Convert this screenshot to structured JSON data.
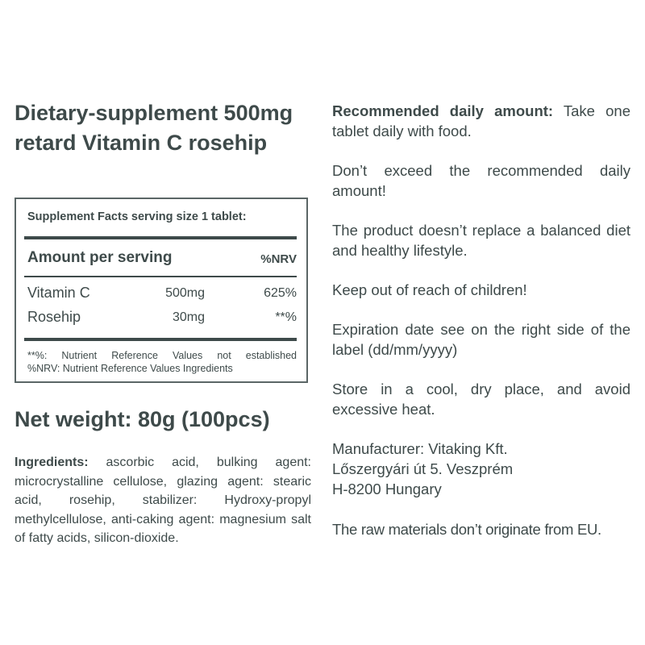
{
  "title": "Dietary-supplement 500mg retard Vitamin C rosehip",
  "facts": {
    "header": "Supplement Facts serving size 1 tablet:",
    "amount_per_serving": "Amount per serving",
    "nrv_header": "%NRV",
    "rows": [
      {
        "name": "Vitamin C",
        "amount": "500mg",
        "nrv": "625%"
      },
      {
        "name": "Rosehip",
        "amount": "30mg",
        "nrv": "**%"
      }
    ],
    "footnotes": [
      "**%: Nutrient Reference Values not established",
      "%NRV: Nutrient Reference Values Ingredients"
    ]
  },
  "net_weight": "Net weight: 80g (100pcs)",
  "ingredients": {
    "label": "Ingredients:",
    "text": " ascorbic acid, bulking agent: microcrystalline cellulose, glazing agent: stearic acid, rosehip, stabilizer: Hydroxy-propyl methylcellulose, anti-caking agent: magnesium salt of fatty acids, silicon-dioxide."
  },
  "right": {
    "recommended_label": "Recommended daily amount:",
    "recommended_text": " Take one tablet daily with food.",
    "p2": "Don’t exceed the recommended daily amount!",
    "p3": "The product doesn’t replace a balanced diet and healthy lifestyle.",
    "p4": "Keep out of reach of children!",
    "p5": "Expiration date see on the right side of the label (dd/mm/yyyy)",
    "p6": "Store in a cool, dry place, and avoid excessive heat.",
    "manufacturer": [
      "Manufacturer: Vitaking Kft.",
      "Lőszergyári út 5. Veszprém",
      "H-8200 Hungary"
    ],
    "p8": "The raw materials don’t originate from EU."
  }
}
